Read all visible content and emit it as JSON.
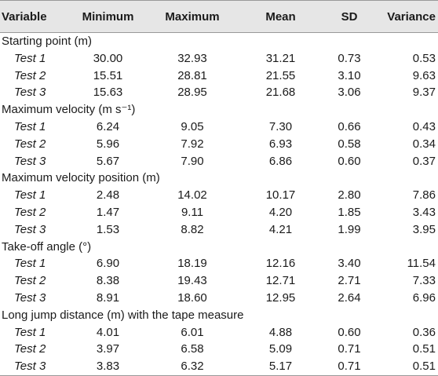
{
  "table": {
    "header": [
      "Variable",
      "Minimum",
      "Maximum",
      "Mean",
      "SD",
      "Variance"
    ],
    "groups": [
      {
        "label": "Starting point (m)",
        "rows": [
          [
            "Test 1",
            "30.00",
            "32.93",
            "31.21",
            "0.73",
            "0.53"
          ],
          [
            "Test 2",
            "15.51",
            "28.81",
            "21.55",
            "3.10",
            "9.63"
          ],
          [
            "Test 3",
            "15.63",
            "28.95",
            "21.68",
            "3.06",
            "9.37"
          ]
        ]
      },
      {
        "label": "Maximum velocity (m s⁻¹)",
        "rows": [
          [
            "Test 1",
            "6.24",
            "9.05",
            "7.30",
            "0.66",
            "0.43"
          ],
          [
            "Test 2",
            "5.96",
            "7.92",
            "6.93",
            "0.58",
            "0.34"
          ],
          [
            "Test 3",
            "5.67",
            "7.90",
            "6.86",
            "0.60",
            "0.37"
          ]
        ]
      },
      {
        "label": "Maximum velocity position (m)",
        "rows": [
          [
            "Test 1",
            "2.48",
            "14.02",
            "10.17",
            "2.80",
            "7.86"
          ],
          [
            "Test 2",
            "1.47",
            "9.11",
            "4.20",
            "1.85",
            "3.43"
          ],
          [
            "Test 3",
            "1.53",
            "8.82",
            "4.21",
            "1.99",
            "3.95"
          ]
        ]
      },
      {
        "label": "Take-off angle (°)",
        "rows": [
          [
            "Test 1",
            "6.90",
            "18.19",
            "12.16",
            "3.40",
            "11.54"
          ],
          [
            "Test 2",
            "8.38",
            "19.43",
            "12.71",
            "2.71",
            "7.33"
          ],
          [
            "Test 3",
            "8.91",
            "18.60",
            "12.95",
            "2.64",
            "6.96"
          ]
        ]
      },
      {
        "label": "Long jump distance (m) with the tape measure",
        "rows": [
          [
            "Test 1",
            "4.01",
            "6.01",
            "4.88",
            "0.60",
            "0.36"
          ],
          [
            "Test 2",
            "3.97",
            "6.58",
            "5.09",
            "0.71",
            "0.51"
          ],
          [
            "Test 3",
            "3.83",
            "6.32",
            "5.17",
            "0.71",
            "0.51"
          ]
        ]
      }
    ]
  }
}
